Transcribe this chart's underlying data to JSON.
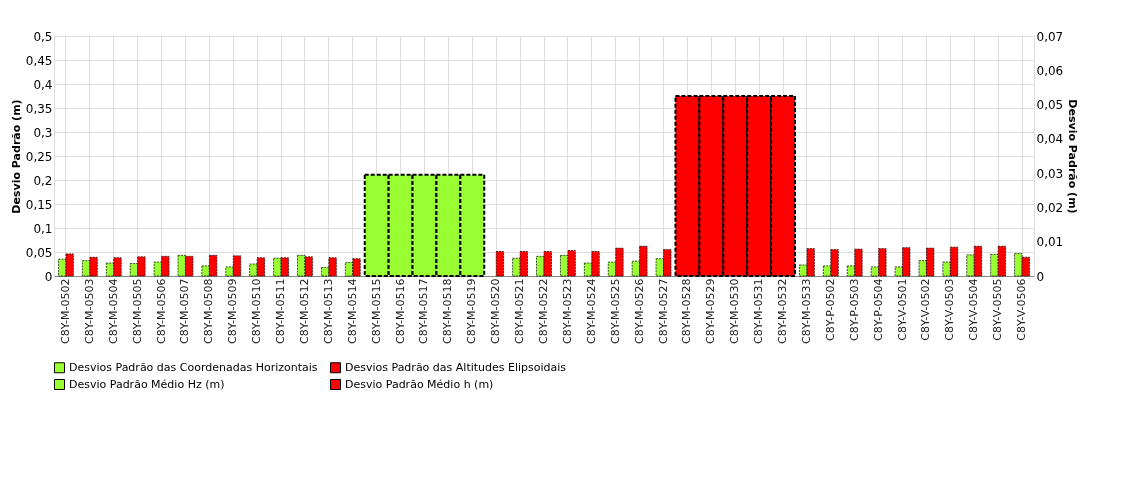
{
  "chart_data": {
    "type": "bar",
    "ylabel": "Desvio Padrão (m)",
    "y2label": "Desvio Padrão (m)",
    "categories": [
      "C8Y-M-0502",
      "C8Y-M-0503",
      "C8Y-M-0504",
      "C8Y-M-0505",
      "C8Y-M-0506",
      "C8Y-M-0507",
      "C8Y-M-0508",
      "C8Y-M-0509",
      "C8Y-M-0510",
      "C8Y-M-0511",
      "C8Y-M-0512",
      "C8Y-M-0513",
      "C8Y-M-0514",
      "C8Y-M-0515",
      "C8Y-M-0516",
      "C8Y-M-0517",
      "C8Y-M-0518",
      "C8Y-M-0519",
      "C8Y-M-0520",
      "C8Y-M-0521",
      "C8Y-M-0522",
      "C8Y-M-0523",
      "C8Y-M-0524",
      "C8Y-M-0525",
      "C8Y-M-0526",
      "C8Y-M-0527",
      "C8Y-M-0528",
      "C8Y-M-0529",
      "C8Y-M-0530",
      "C8Y-M-0531",
      "C8Y-M-0532",
      "C8Y-M-0533",
      "C8Y-P-0502",
      "C8Y-P-0503",
      "C8Y-P-0504",
      "C8Y-V-0501",
      "C8Y-V-0502",
      "C8Y-V-0503",
      "C8Y-V-0504",
      "C8Y-V-0505",
      "C8Y-V-0506"
    ],
    "series": [
      {
        "name": "Desvios Padrão das Coordenadas Horizontais",
        "color": "#99ff33",
        "values": [
          null,
          null,
          null,
          null,
          null,
          null,
          null,
          null,
          null,
          null,
          null,
          null,
          null,
          0.211,
          0.211,
          0.211,
          0.211,
          0.211,
          null,
          null,
          null,
          null,
          null,
          null,
          null,
          null,
          null,
          null,
          null,
          null,
          null,
          null,
          null,
          null,
          null,
          null,
          null,
          null,
          null,
          null,
          null
        ]
      },
      {
        "name": "Desvios Padrão das Altitudes Elipsoidais",
        "color": "#ff0000",
        "values": [
          null,
          null,
          null,
          null,
          null,
          null,
          null,
          null,
          null,
          null,
          null,
          null,
          null,
          null,
          null,
          null,
          null,
          null,
          null,
          null,
          null,
          null,
          null,
          null,
          null,
          null,
          0.375,
          0.375,
          0.375,
          0.375,
          0.375,
          null,
          null,
          null,
          null,
          null,
          null,
          null,
          null,
          null,
          null
        ]
      },
      {
        "name": "Desvio Padrão Médio Hz (m)",
        "color": "#99ff33",
        "values": [
          0.035,
          0.032,
          0.027,
          0.026,
          0.029,
          0.043,
          0.021,
          0.019,
          0.025,
          0.037,
          0.043,
          0.018,
          0.028,
          null,
          null,
          null,
          null,
          null,
          null,
          0.037,
          0.041,
          0.043,
          0.027,
          0.029,
          0.031,
          0.036,
          null,
          null,
          null,
          null,
          null,
          0.023,
          0.021,
          0.021,
          0.019,
          0.019,
          0.032,
          0.029,
          0.044,
          0.045,
          0.047
        ]
      },
      {
        "name": "Desvio Padrão Médio h (m)",
        "color": "#ff0000",
        "values": [
          0.046,
          0.039,
          0.038,
          0.04,
          0.041,
          0.041,
          0.043,
          0.042,
          0.038,
          0.038,
          0.04,
          0.038,
          0.036,
          null,
          null,
          null,
          null,
          null,
          0.051,
          0.051,
          0.051,
          0.053,
          0.051,
          0.058,
          0.062,
          0.055,
          null,
          null,
          null,
          null,
          null,
          0.057,
          0.055,
          0.056,
          0.057,
          0.059,
          0.058,
          0.06,
          0.062,
          0.062,
          0.039
        ]
      }
    ],
    "ylim": [
      0,
      0.5
    ],
    "yticks": [
      {
        "value": 0,
        "label": "0"
      },
      {
        "value": 0.05,
        "label": "0,05"
      },
      {
        "value": 0.1,
        "label": "0,1"
      },
      {
        "value": 0.15,
        "label": "0,15"
      },
      {
        "value": 0.2,
        "label": "0,2"
      },
      {
        "value": 0.25,
        "label": "0,25"
      },
      {
        "value": 0.3,
        "label": "0,3"
      },
      {
        "value": 0.35,
        "label": "0,35"
      },
      {
        "value": 0.4,
        "label": "0,4"
      },
      {
        "value": 0.45,
        "label": "0,45"
      },
      {
        "value": 0.5,
        "label": "0,5"
      }
    ],
    "y2lim": [
      0,
      0.07
    ],
    "y2ticks": [
      {
        "value": 0,
        "label": "0"
      },
      {
        "value": 0.01,
        "label": "0,01"
      },
      {
        "value": 0.02,
        "label": "0,02"
      },
      {
        "value": 0.03,
        "label": "0,03"
      },
      {
        "value": 0.04,
        "label": "0,04"
      },
      {
        "value": 0.05,
        "label": "0,05"
      },
      {
        "value": 0.06,
        "label": "0,06"
      },
      {
        "value": 0.07,
        "label": "0,07"
      }
    ],
    "grid": true,
    "legend": "bottom"
  }
}
